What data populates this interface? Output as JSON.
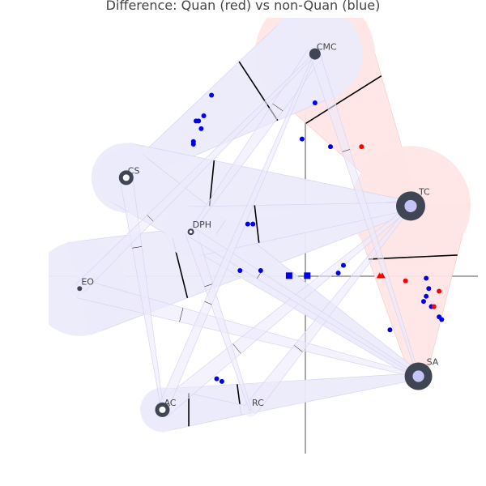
{
  "title": "Difference: Quan (red) vs non-Quan (blue)",
  "colors": {
    "quan": "#ff0000",
    "non_quan": "#0000ee",
    "node": "#3f4552",
    "blue_fill": "#ecebfb",
    "red_fill": "#ffe6e6",
    "axis": "#555555"
  },
  "chart_data": {
    "type": "scatter",
    "title": "Difference: Quan (red) vs non-Quan (blue)",
    "xlim": [
      -1.0,
      0.66
    ],
    "ylim": [
      -0.69,
      1.0
    ],
    "grid": false,
    "nodes": [
      {
        "id": "CMC",
        "label": "CMC",
        "x": 0.03,
        "y": 0.86,
        "size": 7,
        "ring": "#3f4552",
        "core": "#3f4552"
      },
      {
        "id": "CS",
        "label": "CS",
        "x": -0.7,
        "y": 0.38,
        "size": 9,
        "ring": "#3f4552",
        "core": "#ffffff"
      },
      {
        "id": "TC",
        "label": "TC",
        "x": 0.4,
        "y": 0.27,
        "size": 18,
        "ring": "#3f4552",
        "core": "#c4c4f7"
      },
      {
        "id": "DPH",
        "label": "DPH",
        "x": -0.45,
        "y": 0.17,
        "size": 4,
        "ring": "#3f4552",
        "core": "#ffffff"
      },
      {
        "id": "EO",
        "label": "EO",
        "x": -0.88,
        "y": -0.05,
        "size": 3,
        "ring": "#3f4552",
        "core": "#3f4552"
      },
      {
        "id": "SA",
        "label": "SA",
        "x": 0.43,
        "y": -0.39,
        "size": 17,
        "ring": "#3f4552",
        "core": "#c4c4f7"
      },
      {
        "id": "AC",
        "label": "AC",
        "x": -0.56,
        "y": -0.52,
        "size": 9,
        "ring": "#3f4552",
        "core": "#ffffff"
      },
      {
        "id": "RC",
        "label": "RC",
        "x": -0.22,
        "y": -0.52,
        "size": 0,
        "ring": "#3f4552",
        "core": "#3f4552"
      }
    ],
    "edges": [
      {
        "from": "CMC",
        "to": "TC",
        "weight": 0.9,
        "group": "quan"
      },
      {
        "from": "TC",
        "to": "SA",
        "weight": 0.9,
        "group": "quan"
      },
      {
        "from": "CMC",
        "to": "CS",
        "weight": 0.7,
        "group": "non_quan"
      },
      {
        "from": "CS",
        "to": "TC",
        "weight": 0.5,
        "group": "non_quan"
      },
      {
        "from": "EO",
        "to": "TC",
        "weight": 0.7,
        "group": "non_quan"
      },
      {
        "from": "CS",
        "to": "SA",
        "weight": 0.4,
        "group": "non_quan"
      },
      {
        "from": "DPH",
        "to": "TC",
        "weight": 0.35,
        "group": "non_quan"
      },
      {
        "from": "AC",
        "to": "SA",
        "weight": 0.28,
        "group": "non_quan"
      },
      {
        "from": "AC",
        "to": "RC",
        "weight": 0.3,
        "group": "non_quan"
      },
      {
        "from": "EO",
        "to": "SA",
        "weight": 0.1,
        "group": "non_quan"
      },
      {
        "from": "CMC",
        "to": "DPH",
        "weight": 0.08,
        "group": "non_quan"
      },
      {
        "from": "AC",
        "to": "TC",
        "weight": 0.08,
        "group": "non_quan"
      },
      {
        "from": "RC",
        "to": "TC",
        "weight": 0.06,
        "group": "non_quan"
      },
      {
        "from": "CS",
        "to": "AC",
        "weight": 0.05,
        "group": "non_quan"
      },
      {
        "from": "DPH",
        "to": "RC",
        "weight": 0.04,
        "group": "non_quan"
      },
      {
        "from": "EO",
        "to": "CMC",
        "weight": 0.04,
        "group": "non_quan"
      },
      {
        "from": "CMC",
        "to": "SA",
        "weight": 0.03,
        "group": "non_quan"
      },
      {
        "from": "DPH",
        "to": "SA",
        "weight": 0.03,
        "group": "non_quan"
      },
      {
        "from": "AC",
        "to": "CMC",
        "weight": 0.03,
        "group": "non_quan"
      }
    ],
    "points": [
      {
        "x": -0.37,
        "y": 0.7,
        "group": "non_quan",
        "shape": "circle"
      },
      {
        "x": -0.4,
        "y": 0.62,
        "group": "non_quan",
        "shape": "circle"
      },
      {
        "x": -0.42,
        "y": 0.6,
        "group": "non_quan",
        "shape": "circle"
      },
      {
        "x": -0.43,
        "y": 0.6,
        "group": "non_quan",
        "shape": "circle"
      },
      {
        "x": -0.41,
        "y": 0.57,
        "group": "non_quan",
        "shape": "circle"
      },
      {
        "x": -0.44,
        "y": 0.52,
        "group": "non_quan",
        "shape": "circle"
      },
      {
        "x": -0.44,
        "y": 0.51,
        "group": "non_quan",
        "shape": "circle"
      },
      {
        "x": 0.03,
        "y": 0.67,
        "group": "non_quan",
        "shape": "circle"
      },
      {
        "x": -0.02,
        "y": 0.53,
        "group": "non_quan",
        "shape": "circle"
      },
      {
        "x": 0.09,
        "y": 0.5,
        "group": "non_quan",
        "shape": "circle"
      },
      {
        "x": 0.21,
        "y": 0.5,
        "group": "quan",
        "shape": "circle"
      },
      {
        "x": -0.23,
        "y": 0.2,
        "group": "non_quan",
        "shape": "circle"
      },
      {
        "x": -0.21,
        "y": 0.2,
        "group": "non_quan",
        "shape": "circle"
      },
      {
        "x": -0.26,
        "y": 0.02,
        "group": "non_quan",
        "shape": "circle"
      },
      {
        "x": -0.18,
        "y": 0.02,
        "group": "non_quan",
        "shape": "circle"
      },
      {
        "x": 0.14,
        "y": 0.04,
        "group": "non_quan",
        "shape": "circle"
      },
      {
        "x": 0.12,
        "y": 0.01,
        "group": "non_quan",
        "shape": "circle"
      },
      {
        "x": -0.07,
        "y": 0.0,
        "group": "non_quan",
        "shape": "square"
      },
      {
        "x": 0.0,
        "y": 0.0,
        "group": "non_quan",
        "shape": "square"
      },
      {
        "x": 0.28,
        "y": 0.0,
        "group": "quan",
        "shape": "triangle"
      },
      {
        "x": 0.29,
        "y": 0.0,
        "group": "quan",
        "shape": "triangle"
      },
      {
        "x": 0.38,
        "y": -0.02,
        "group": "quan",
        "shape": "circle"
      },
      {
        "x": 0.46,
        "y": -0.01,
        "group": "non_quan",
        "shape": "circle"
      },
      {
        "x": 0.47,
        "y": -0.05,
        "group": "non_quan",
        "shape": "circle"
      },
      {
        "x": 0.51,
        "y": -0.06,
        "group": "quan",
        "shape": "circle"
      },
      {
        "x": 0.46,
        "y": -0.08,
        "group": "non_quan",
        "shape": "circle"
      },
      {
        "x": 0.45,
        "y": -0.1,
        "group": "non_quan",
        "shape": "circle"
      },
      {
        "x": 0.48,
        "y": -0.12,
        "group": "non_quan",
        "shape": "circle"
      },
      {
        "x": 0.49,
        "y": -0.12,
        "group": "quan",
        "shape": "circle"
      },
      {
        "x": 0.51,
        "y": -0.16,
        "group": "non_quan",
        "shape": "circle"
      },
      {
        "x": 0.52,
        "y": -0.17,
        "group": "non_quan",
        "shape": "circle"
      },
      {
        "x": 0.32,
        "y": -0.21,
        "group": "non_quan",
        "shape": "circle"
      },
      {
        "x": -0.35,
        "y": -0.4,
        "group": "non_quan",
        "shape": "circle"
      },
      {
        "x": -0.33,
        "y": -0.41,
        "group": "non_quan",
        "shape": "circle"
      }
    ]
  }
}
